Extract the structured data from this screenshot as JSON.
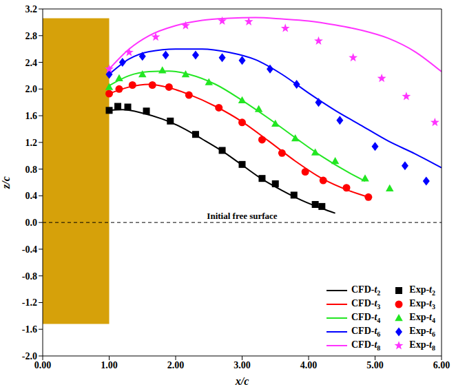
{
  "chart_data": {
    "type": "line",
    "x_label": "x/c",
    "y_label": "z/c",
    "xlim": [
      0,
      6
    ],
    "ylim": [
      -2.0,
      3.2
    ],
    "xticks": [
      {
        "value": 0,
        "label": "0.00"
      },
      {
        "value": 1,
        "label": "1.00"
      },
      {
        "value": 2,
        "label": "2.00"
      },
      {
        "value": 3,
        "label": "3.00"
      },
      {
        "value": 4,
        "label": "4.00"
      },
      {
        "value": 5,
        "label": "5.00"
      },
      {
        "value": 6,
        "label": "6.00"
      }
    ],
    "yticks": [
      {
        "value": -2,
        "label": "-2.0"
      },
      -1.6,
      -1.2,
      -0.8,
      -0.4,
      {
        "value": 0,
        "label": "0.0"
      },
      0.4,
      0.8,
      1.2,
      1.6,
      {
        "value": 2,
        "label": "2.0"
      },
      2.4,
      2.8,
      3.2
    ],
    "grid": false,
    "legend": "lower right",
    "reference_line": {
      "y": 0,
      "line_style": "dashed",
      "label": "Initial free surface"
    },
    "plate": {
      "x": [
        0,
        1
      ],
      "z": [
        -1.52,
        3.06
      ],
      "color": "#d6a10a"
    },
    "series": [
      {
        "name": "CFD-t2",
        "type": "line",
        "color": "#000000",
        "line_style": "solid",
        "x": [
          1.0,
          1.2,
          1.5,
          1.8,
          2.1,
          2.4,
          2.7,
          3.0,
          3.3,
          3.6,
          3.9,
          4.2,
          4.4
        ],
        "values": [
          1.68,
          1.69,
          1.64,
          1.55,
          1.42,
          1.25,
          1.07,
          0.86,
          0.65,
          0.48,
          0.33,
          0.21,
          0.14
        ]
      },
      {
        "name": "CFD-t3",
        "type": "line",
        "color": "#ff0000",
        "line_style": "solid",
        "x": [
          1.0,
          1.3,
          1.6,
          1.9,
          2.2,
          2.6,
          3.0,
          3.4,
          3.8,
          4.2,
          4.6,
          4.9
        ],
        "values": [
          1.93,
          2.03,
          2.07,
          2.02,
          1.92,
          1.74,
          1.51,
          1.22,
          0.92,
          0.66,
          0.48,
          0.38
        ]
      },
      {
        "name": "CFD-t4",
        "type": "line",
        "color": "#22e622",
        "line_style": "solid",
        "x": [
          1.0,
          1.3,
          1.6,
          1.9,
          2.2,
          2.6,
          3.0,
          3.4,
          3.8,
          4.2,
          4.6,
          4.85
        ],
        "values": [
          2.05,
          2.2,
          2.26,
          2.27,
          2.22,
          2.07,
          1.83,
          1.56,
          1.27,
          0.99,
          0.75,
          0.62
        ]
      },
      {
        "name": "CFD-t6",
        "type": "line",
        "color": "#0000ff",
        "line_style": "solid",
        "x": [
          1.0,
          1.3,
          1.6,
          2.0,
          2.4,
          2.8,
          3.2,
          3.6,
          4.0,
          4.4,
          4.8,
          5.2,
          5.6,
          6.0
        ],
        "values": [
          2.22,
          2.45,
          2.56,
          2.6,
          2.6,
          2.55,
          2.44,
          2.22,
          1.94,
          1.68,
          1.45,
          1.22,
          1.03,
          0.82
        ]
      },
      {
        "name": "CFD-t8",
        "type": "line",
        "color": "#ff33ff",
        "line_style": "solid",
        "x": [
          1.0,
          1.3,
          1.6,
          2.0,
          2.4,
          2.8,
          3.2,
          3.6,
          4.0,
          4.4,
          4.8,
          5.2,
          5.6,
          6.0
        ],
        "values": [
          2.3,
          2.6,
          2.8,
          2.95,
          3.03,
          3.06,
          3.07,
          3.05,
          3.02,
          2.96,
          2.88,
          2.76,
          2.56,
          2.26
        ]
      },
      {
        "name": "Exp-t2",
        "type": "scatter",
        "color": "#000000",
        "marker": "square",
        "x": [
          1.0,
          1.13,
          1.28,
          1.56,
          1.92,
          2.3,
          2.7,
          3.0,
          3.3,
          3.5,
          3.78,
          4.1,
          4.2
        ],
        "values": [
          1.68,
          1.74,
          1.73,
          1.67,
          1.52,
          1.32,
          1.08,
          0.87,
          0.66,
          0.58,
          0.41,
          0.27,
          0.24
        ]
      },
      {
        "name": "Exp-t3",
        "type": "scatter",
        "color": "#ff0000",
        "marker": "circle",
        "x": [
          1.0,
          1.15,
          1.35,
          1.65,
          1.9,
          2.2,
          2.65,
          3.0,
          3.3,
          3.6,
          3.95,
          4.22,
          4.57,
          4.9
        ],
        "values": [
          1.93,
          2.0,
          2.06,
          2.06,
          2.03,
          1.91,
          1.72,
          1.5,
          1.24,
          1.04,
          0.76,
          0.63,
          0.52,
          0.38
        ]
      },
      {
        "name": "Exp-t4",
        "type": "scatter",
        "color": "#22e622",
        "marker": "triangle",
        "x": [
          1.0,
          1.15,
          1.5,
          1.8,
          2.15,
          2.5,
          3.0,
          3.25,
          3.5,
          3.8,
          4.1,
          4.4,
          4.85,
          5.22
        ],
        "values": [
          2.03,
          2.16,
          2.22,
          2.28,
          2.22,
          2.1,
          1.83,
          1.7,
          1.48,
          1.26,
          1.05,
          0.92,
          0.66,
          0.51
        ]
      },
      {
        "name": "Exp-t6",
        "type": "scatter",
        "color": "#0000ff",
        "marker": "diamond",
        "x": [
          1.0,
          1.2,
          1.5,
          1.85,
          2.3,
          2.7,
          3.0,
          3.42,
          3.82,
          4.15,
          4.47,
          5.0,
          5.45,
          5.77
        ],
        "values": [
          2.22,
          2.4,
          2.49,
          2.51,
          2.51,
          2.47,
          2.43,
          2.3,
          2.07,
          1.8,
          1.53,
          1.14,
          0.85,
          0.62
        ]
      },
      {
        "name": "Exp-t8",
        "type": "scatter",
        "color": "#ff33ff",
        "marker": "star",
        "x": [
          1.0,
          1.3,
          1.7,
          2.15,
          2.7,
          3.1,
          3.65,
          4.15,
          4.67,
          5.1,
          5.47,
          5.9
        ],
        "values": [
          2.3,
          2.55,
          2.78,
          2.95,
          3.02,
          3.01,
          2.91,
          2.72,
          2.47,
          2.16,
          1.89,
          1.5
        ]
      }
    ]
  }
}
